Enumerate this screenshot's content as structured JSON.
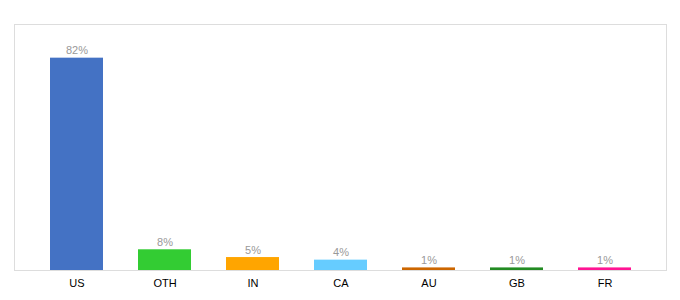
{
  "chart_data": {
    "type": "bar",
    "categories": [
      "US",
      "OTH",
      "IN",
      "CA",
      "AU",
      "GB",
      "FR"
    ],
    "values": [
      82,
      8,
      5,
      4,
      1,
      1,
      1
    ],
    "value_labels": [
      "82%",
      "8%",
      "5%",
      "4%",
      "1%",
      "1%",
      "1%"
    ],
    "colors": [
      "#4472C4",
      "#33CC33",
      "#FFA500",
      "#66CCFF",
      "#CC6600",
      "#228B22",
      "#FF1493"
    ],
    "ylim": [
      0,
      95
    ],
    "data_labels": true,
    "grid": false,
    "tick_labels": "x"
  }
}
